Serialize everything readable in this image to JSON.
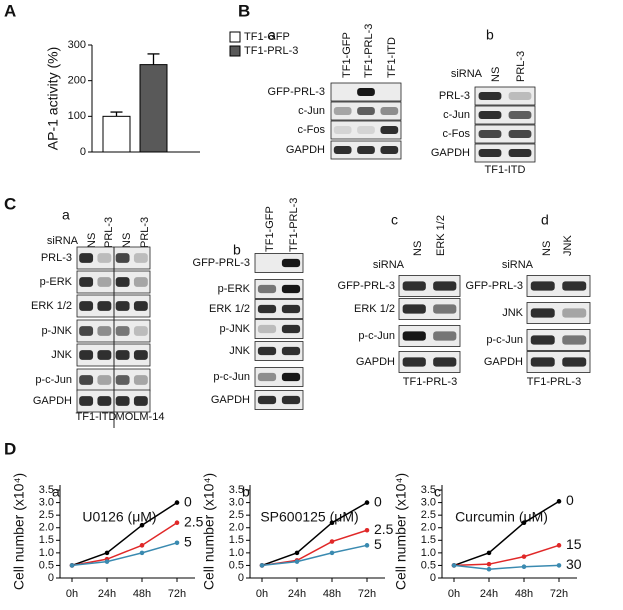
{
  "panel_letters": [
    "A",
    "B",
    "C",
    "D"
  ],
  "chart_data": [
    {
      "type": "bar",
      "y_label": "AP-1 activity (%)",
      "categories": [
        null
      ],
      "series": [
        {
          "name": "TF1-GFP",
          "color": "#ffffff",
          "values": [
            100
          ],
          "errors": [
            12
          ]
        },
        {
          "name": "TF1-PRL-3",
          "color": "#595959",
          "values": [
            245
          ],
          "errors": [
            30
          ]
        }
      ],
      "ylim": [
        0,
        300
      ],
      "yticks": [
        0,
        100,
        200,
        300
      ],
      "legend": "upper right"
    },
    {
      "type": "line",
      "panel": "a",
      "title": "U0126 (μM)",
      "y_label": "Cell number (x10⁴)",
      "categories": [
        "0h",
        "24h",
        "48h",
        "72h"
      ],
      "series": [
        {
          "name": "0",
          "color": "#000000",
          "values": [
            0.5,
            1.0,
            2.1,
            3.0
          ]
        },
        {
          "name": "2.5",
          "color": "#e02828",
          "values": [
            0.5,
            0.75,
            1.3,
            2.2
          ]
        },
        {
          "name": "5",
          "color": "#3a8ab0",
          "values": [
            0.5,
            0.65,
            1.0,
            1.4
          ]
        }
      ],
      "ylim": [
        0,
        3.7
      ],
      "yticks": [
        0,
        0.5,
        {
          "value": 1,
          "label": "1.0"
        },
        1.5,
        {
          "value": 2,
          "label": "2.0"
        },
        2.5,
        {
          "value": 3,
          "label": "3.0"
        },
        3.5
      ]
    },
    {
      "type": "line",
      "panel": "b",
      "title": "SP600125 (μM)",
      "y_label": "Cell number (x10⁴)",
      "categories": [
        "0h",
        "24h",
        "48h",
        "72h"
      ],
      "series": [
        {
          "name": "0",
          "color": "#000000",
          "values": [
            0.5,
            1.0,
            2.2,
            3.0
          ]
        },
        {
          "name": "2.5",
          "color": "#e02828",
          "values": [
            0.5,
            0.7,
            1.45,
            1.9
          ]
        },
        {
          "name": "5",
          "color": "#3a8ab0",
          "values": [
            0.5,
            0.65,
            1.0,
            1.3
          ]
        }
      ],
      "ylim": [
        0,
        3.7
      ],
      "yticks": [
        0,
        0.5,
        {
          "value": 1,
          "label": "1.0"
        },
        1.5,
        {
          "value": 2,
          "label": "2.0"
        },
        2.5,
        {
          "value": 3,
          "label": "3.0"
        },
        3.5
      ]
    },
    {
      "type": "line",
      "panel": "c",
      "title": "Curcumin (μM)",
      "y_label": "Cell number (x10⁴)",
      "categories": [
        "0h",
        "24h",
        "48h",
        "72h"
      ],
      "series": [
        {
          "name": "0",
          "color": "#000000",
          "values": [
            0.5,
            1.0,
            2.2,
            3.05
          ]
        },
        {
          "name": "15",
          "color": "#e02828",
          "values": [
            0.5,
            0.55,
            0.85,
            1.3
          ]
        },
        {
          "name": "30",
          "color": "#3a8ab0",
          "values": [
            0.5,
            0.35,
            0.45,
            0.5
          ]
        }
      ],
      "ylim": [
        0,
        3.7
      ],
      "yticks": [
        0,
        0.5,
        {
          "value": 1,
          "label": "1.0"
        },
        1.5,
        {
          "value": 2,
          "label": "2.0"
        },
        2.5,
        {
          "value": 3,
          "label": "3.0"
        },
        3.5
      ]
    }
  ],
  "blots": [
    {
      "panel": "a",
      "lanes": [
        "TF1-GFP",
        "TF1-PRL-3",
        "TF1-ITD"
      ],
      "rows": [
        "GFP-PRL-3",
        "c-Jun",
        "c-Fos",
        "GAPDH"
      ]
    },
    {
      "panel": "b",
      "siRNA": "siRNA",
      "lanes": [
        "NS",
        "PRL-3"
      ],
      "rows": [
        "PRL-3",
        "c-Jun",
        "c-Fos",
        "GAPDH"
      ],
      "cell_lines": [
        "TF1-ITD"
      ]
    },
    {
      "panel": "a",
      "siRNA": "siRNA",
      "lanes": [
        "NS",
        "PRL-3",
        "NS",
        "PRL-3"
      ],
      "rows": [
        "PRL-3",
        "p-ERK",
        "ERK 1/2",
        "p-JNK",
        "JNK",
        "p-c-Jun",
        "GAPDH"
      ],
      "cell_lines": [
        "TF1-ITD",
        "MOLM-14"
      ]
    },
    {
      "panel": "b",
      "lanes": [
        "TF1-GFP",
        "TF1-PRL-3"
      ],
      "rows": [
        "GFP-PRL-3",
        "p-ERK",
        "ERK 1/2",
        "p-JNK",
        "JNK",
        "p-c-Jun",
        "GAPDH"
      ]
    },
    {
      "panel": "c",
      "siRNA": "siRNA",
      "lanes": [
        "NS",
        "ERK 1/2"
      ],
      "rows": [
        "GFP-PRL-3",
        "ERK 1/2",
        "p-c-Jun",
        "GAPDH"
      ],
      "cell_lines": [
        "TF1-PRL-3"
      ]
    },
    {
      "panel": "d",
      "siRNA": "siRNA",
      "lanes": [
        "NS",
        "JNK"
      ],
      "rows": [
        "GFP-PRL-3",
        "JNK",
        "p-c-Jun",
        "GAPDH"
      ],
      "cell_lines": [
        "TF1-PRL-3"
      ]
    }
  ]
}
